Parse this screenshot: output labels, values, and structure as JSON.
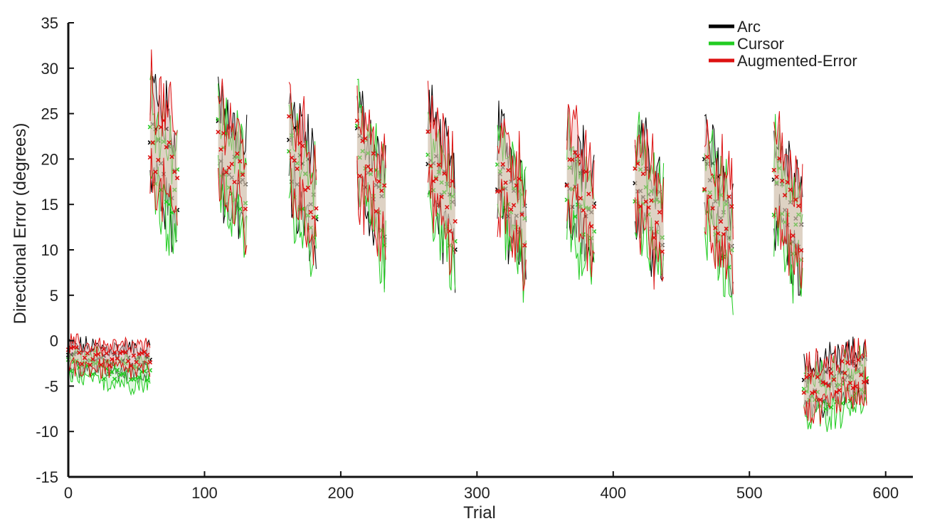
{
  "chart_data": {
    "type": "line",
    "title": "",
    "xlabel": "Trial",
    "ylabel": "Directional Error (degrees)",
    "xlim": [
      0,
      620
    ],
    "ylim": [
      -15,
      35
    ],
    "xticks": [
      0,
      100,
      200,
      300,
      400,
      500,
      600
    ],
    "yticks": [
      35,
      30,
      25,
      20,
      15,
      10,
      5,
      0,
      -5,
      -10,
      -15
    ],
    "grid": false,
    "legend_position": "top-right",
    "blocks": [
      {
        "x": [
          0,
          60
        ],
        "base": [
          -2.2,
          -2.6
        ],
        "amp": 1.5
      },
      {
        "x": [
          60,
          80
        ],
        "base": [
          23,
          17
        ],
        "amp": 5.5
      },
      {
        "x": [
          110,
          131
        ],
        "base": [
          22,
          16
        ],
        "amp": 5
      },
      {
        "x": [
          162,
          182
        ],
        "base": [
          21,
          15
        ],
        "amp": 5
      },
      {
        "x": [
          212,
          233
        ],
        "base": [
          21,
          14
        ],
        "amp": 5
      },
      {
        "x": [
          264,
          284
        ],
        "base": [
          21,
          13
        ],
        "amp": 5
      },
      {
        "x": [
          315,
          336
        ],
        "base": [
          19,
          13
        ],
        "amp": 5
      },
      {
        "x": [
          366,
          386
        ],
        "base": [
          19,
          13
        ],
        "amp": 5
      },
      {
        "x": [
          416,
          437
        ],
        "base": [
          18,
          12
        ],
        "amp": 5
      },
      {
        "x": [
          467,
          488
        ],
        "base": [
          18,
          11
        ],
        "amp": 5
      },
      {
        "x": [
          518,
          539
        ],
        "base": [
          18,
          11
        ],
        "amp": 5
      },
      {
        "x": [
          540,
          586
        ],
        "base": [
          -6,
          -3.5
        ],
        "amp": 2.5
      }
    ],
    "series": [
      {
        "name": "Arc",
        "color": "#000000",
        "band": "#bdbdbd",
        "offset": 0.3
      },
      {
        "name": "Cursor",
        "color": "#22cc22",
        "band": "#b8f0b8",
        "offset": -0.8
      },
      {
        "name": "Augmented-Error",
        "color": "#dd1111",
        "band": "#f2b8b8",
        "offset": 0.5
      }
    ]
  }
}
